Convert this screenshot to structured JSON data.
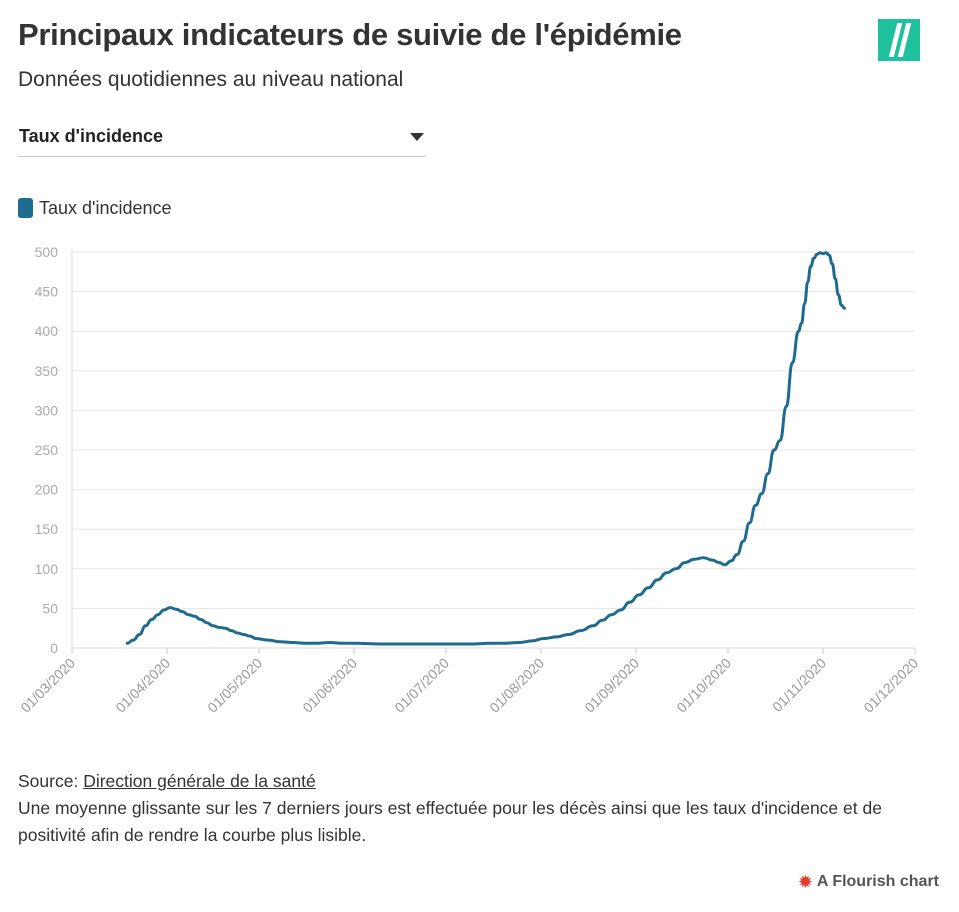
{
  "header": {
    "title": "Principaux indicateurs de suivie de l'épidémie",
    "subtitle": "Données quotidiennes au niveau national"
  },
  "selector": {
    "selected": "Taux d'incidence"
  },
  "colors": {
    "series": "#1d6b8e",
    "logo": "#1fc09c",
    "grid": "#e6e6e6",
    "flourish": "#e73a2e"
  },
  "chart_data": {
    "type": "line",
    "title": "",
    "xlabel": "",
    "ylabel": "",
    "ylim": [
      0,
      500
    ],
    "yticks": [
      0,
      50,
      100,
      150,
      200,
      250,
      300,
      350,
      400,
      450,
      500
    ],
    "x_range": [
      "01/03/2020",
      "01/12/2020"
    ],
    "xticks": [
      "01/03/2020",
      "01/04/2020",
      "01/05/2020",
      "01/06/2020",
      "01/07/2020",
      "01/08/2020",
      "01/09/2020",
      "01/10/2020",
      "01/11/2020",
      "01/12/2020"
    ],
    "legend": {
      "position": "top-left"
    },
    "series": [
      {
        "name": "Taux d'incidence",
        "points": [
          [
            "2020-03-19",
            6
          ],
          [
            "2020-03-21",
            10
          ],
          [
            "2020-03-23",
            17
          ],
          [
            "2020-03-25",
            28
          ],
          [
            "2020-03-27",
            36
          ],
          [
            "2020-03-29",
            42
          ],
          [
            "2020-03-31",
            48
          ],
          [
            "2020-04-02",
            51
          ],
          [
            "2020-04-04",
            49
          ],
          [
            "2020-04-06",
            46
          ],
          [
            "2020-04-08",
            42
          ],
          [
            "2020-04-10",
            40
          ],
          [
            "2020-04-12",
            36
          ],
          [
            "2020-04-14",
            32
          ],
          [
            "2020-04-16",
            28
          ],
          [
            "2020-04-18",
            26
          ],
          [
            "2020-04-20",
            25
          ],
          [
            "2020-04-22",
            22
          ],
          [
            "2020-04-24",
            19
          ],
          [
            "2020-04-26",
            17
          ],
          [
            "2020-04-28",
            15
          ],
          [
            "2020-04-30",
            12
          ],
          [
            "2020-05-04",
            10
          ],
          [
            "2020-05-08",
            8
          ],
          [
            "2020-05-12",
            7
          ],
          [
            "2020-05-16",
            6
          ],
          [
            "2020-05-20",
            6
          ],
          [
            "2020-05-24",
            7
          ],
          [
            "2020-05-28",
            6
          ],
          [
            "2020-06-01",
            6
          ],
          [
            "2020-06-10",
            5
          ],
          [
            "2020-06-20",
            5
          ],
          [
            "2020-06-30",
            5
          ],
          [
            "2020-07-05",
            5
          ],
          [
            "2020-07-10",
            5
          ],
          [
            "2020-07-15",
            6
          ],
          [
            "2020-07-20",
            6
          ],
          [
            "2020-07-25",
            7
          ],
          [
            "2020-07-29",
            9
          ],
          [
            "2020-08-02",
            12
          ],
          [
            "2020-08-06",
            14
          ],
          [
            "2020-08-10",
            17
          ],
          [
            "2020-08-14",
            22
          ],
          [
            "2020-08-18",
            28
          ],
          [
            "2020-08-21",
            35
          ],
          [
            "2020-08-24",
            42
          ],
          [
            "2020-08-27",
            48
          ],
          [
            "2020-08-30",
            58
          ],
          [
            "2020-09-02",
            67
          ],
          [
            "2020-09-05",
            76
          ],
          [
            "2020-09-08",
            86
          ],
          [
            "2020-09-11",
            95
          ],
          [
            "2020-09-14",
            100
          ],
          [
            "2020-09-17",
            108
          ],
          [
            "2020-09-20",
            112
          ],
          [
            "2020-09-23",
            114
          ],
          [
            "2020-09-26",
            111
          ],
          [
            "2020-09-28",
            108
          ],
          [
            "2020-09-30",
            105
          ],
          [
            "2020-10-02",
            110
          ],
          [
            "2020-10-04",
            118
          ],
          [
            "2020-10-06",
            135
          ],
          [
            "2020-10-08",
            158
          ],
          [
            "2020-10-10",
            180
          ],
          [
            "2020-10-12",
            195
          ],
          [
            "2020-10-14",
            220
          ],
          [
            "2020-10-16",
            250
          ],
          [
            "2020-10-18",
            262
          ],
          [
            "2020-10-20",
            305
          ],
          [
            "2020-10-22",
            360
          ],
          [
            "2020-10-24",
            400
          ],
          [
            "2020-10-25",
            410
          ],
          [
            "2020-10-26",
            435
          ],
          [
            "2020-10-27",
            462
          ],
          [
            "2020-10-28",
            482
          ],
          [
            "2020-10-29",
            492
          ],
          [
            "2020-10-30",
            497
          ],
          [
            "2020-10-31",
            499
          ],
          [
            "2020-11-01",
            498
          ],
          [
            "2020-11-02",
            499
          ],
          [
            "2020-11-03",
            496
          ],
          [
            "2020-11-04",
            485
          ],
          [
            "2020-11-05",
            466
          ],
          [
            "2020-11-06",
            446
          ],
          [
            "2020-11-07",
            433
          ],
          [
            "2020-11-08",
            429
          ]
        ]
      }
    ]
  },
  "footer": {
    "source_prefix": "Source: ",
    "source_link": "Direction générale de la santé",
    "note": "Une moyenne glissante sur les 7 derniers jours est effectuée pour les décès ainsi que les taux d'incidence et de positivité afin de rendre la courbe plus lisible.",
    "credit": "A Flourish chart"
  }
}
